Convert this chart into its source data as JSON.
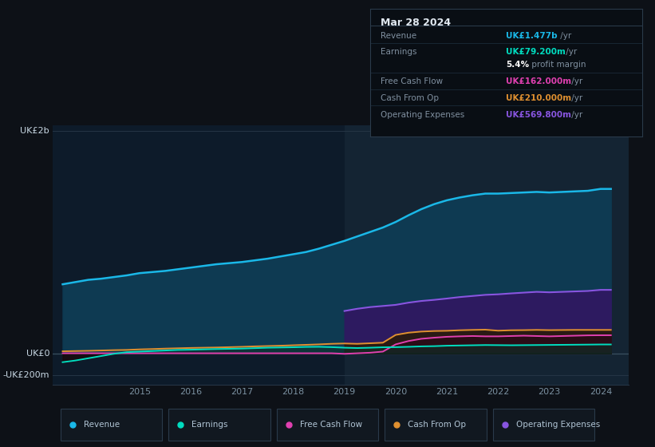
{
  "bg_color": "#0d1117",
  "chart_bg": "#0d1b2a",
  "grid_color": "#253545",
  "zero_line_color": "#3a5060",
  "years": [
    2013.5,
    2013.75,
    2014.0,
    2014.25,
    2014.5,
    2014.75,
    2015.0,
    2015.25,
    2015.5,
    2015.75,
    2016.0,
    2016.25,
    2016.5,
    2016.75,
    2017.0,
    2017.25,
    2017.5,
    2017.75,
    2018.0,
    2018.25,
    2018.5,
    2018.75,
    2019.0,
    2019.25,
    2019.5,
    2019.75,
    2020.0,
    2020.25,
    2020.5,
    2020.75,
    2021.0,
    2021.25,
    2021.5,
    2021.75,
    2022.0,
    2022.25,
    2022.5,
    2022.75,
    2023.0,
    2023.25,
    2023.5,
    2023.75,
    2024.0,
    2024.2
  ],
  "revenue": [
    620,
    640,
    660,
    670,
    685,
    700,
    720,
    730,
    740,
    755,
    770,
    785,
    800,
    810,
    820,
    835,
    850,
    870,
    890,
    910,
    940,
    975,
    1010,
    1050,
    1090,
    1130,
    1180,
    1240,
    1295,
    1340,
    1375,
    1400,
    1420,
    1435,
    1435,
    1440,
    1445,
    1450,
    1445,
    1450,
    1455,
    1460,
    1477,
    1477
  ],
  "earnings": [
    -80,
    -65,
    -45,
    -25,
    -5,
    10,
    15,
    20,
    25,
    30,
    32,
    35,
    38,
    40,
    42,
    46,
    50,
    52,
    54,
    57,
    58,
    55,
    50,
    47,
    50,
    54,
    55,
    58,
    62,
    64,
    68,
    70,
    72,
    74,
    73,
    72,
    73,
    74,
    75,
    76,
    77,
    78,
    79.2,
    79.2
  ],
  "free_cash_flow": [
    0,
    0,
    0,
    0,
    0,
    0,
    0,
    0,
    0,
    0,
    0,
    0,
    0,
    0,
    0,
    0,
    0,
    0,
    0,
    0,
    0,
    0,
    -5,
    0,
    5,
    15,
    80,
    110,
    130,
    140,
    148,
    152,
    155,
    152,
    152,
    155,
    158,
    155,
    152,
    155,
    158,
    161,
    162,
    162
  ],
  "cash_from_op": [
    18,
    20,
    22,
    25,
    28,
    30,
    35,
    38,
    42,
    45,
    48,
    50,
    52,
    55,
    58,
    62,
    65,
    68,
    72,
    76,
    80,
    85,
    88,
    85,
    90,
    95,
    165,
    185,
    195,
    200,
    202,
    207,
    210,
    212,
    203,
    207,
    208,
    210,
    208,
    209,
    210,
    210,
    210,
    210
  ],
  "op_expenses_x": [
    2019.0,
    2019.25,
    2019.5,
    2019.75,
    2020.0,
    2020.25,
    2020.5,
    2020.75,
    2021.0,
    2021.25,
    2021.5,
    2021.75,
    2022.0,
    2022.25,
    2022.5,
    2022.75,
    2023.0,
    2023.25,
    2023.5,
    2023.75,
    2024.0,
    2024.2
  ],
  "op_expenses": [
    380,
    400,
    415,
    425,
    435,
    455,
    470,
    480,
    492,
    505,
    515,
    525,
    530,
    538,
    545,
    552,
    548,
    552,
    556,
    560,
    569.8,
    569.8
  ],
  "revenue_color": "#1ab8e8",
  "revenue_fill": "#0e3a52",
  "earnings_color": "#00ddc0",
  "fcf_color": "#e040b0",
  "cfop_color": "#e09030",
  "op_color": "#8855e0",
  "op_fill": "#2d1a60",
  "ylim_min": -280,
  "ylim_max": 2050,
  "xlim_min": 2013.3,
  "xlim_max": 2024.55,
  "xticks": [
    2015,
    2016,
    2017,
    2018,
    2019,
    2020,
    2021,
    2022,
    2023,
    2024
  ],
  "highlight_x": 2019.0,
  "tooltip_title": "Mar 28 2024",
  "tooltip_rows": [
    {
      "label": "Revenue",
      "value": "UK£1.477b",
      "unit": " /yr",
      "color": "#1ab8e8"
    },
    {
      "label": "Earnings",
      "value": "UK£79.200m",
      "unit": " /yr",
      "color": "#00ddc0"
    },
    {
      "label": "",
      "value": "5.4%",
      "unit": " profit margin",
      "color": "#ffffff"
    },
    {
      "label": "Free Cash Flow",
      "value": "UK£162.000m",
      "unit": " /yr",
      "color": "#e040b0"
    },
    {
      "label": "Cash From Op",
      "value": "UK£210.000m",
      "unit": " /yr",
      "color": "#e09030"
    },
    {
      "label": "Operating Expenses",
      "value": "UK£569.800m",
      "unit": " /yr",
      "color": "#8855e0"
    }
  ],
  "legend_items": [
    {
      "label": "Revenue",
      "color": "#1ab8e8"
    },
    {
      "label": "Earnings",
      "color": "#00ddc0"
    },
    {
      "label": "Free Cash Flow",
      "color": "#e040b0"
    },
    {
      "label": "Cash From Op",
      "color": "#e09030"
    },
    {
      "label": "Operating Expenses",
      "color": "#8855e0"
    }
  ],
  "font_color": "#b0c4d4",
  "tick_color": "#7a90a0",
  "label_color": "#c8d8e4"
}
